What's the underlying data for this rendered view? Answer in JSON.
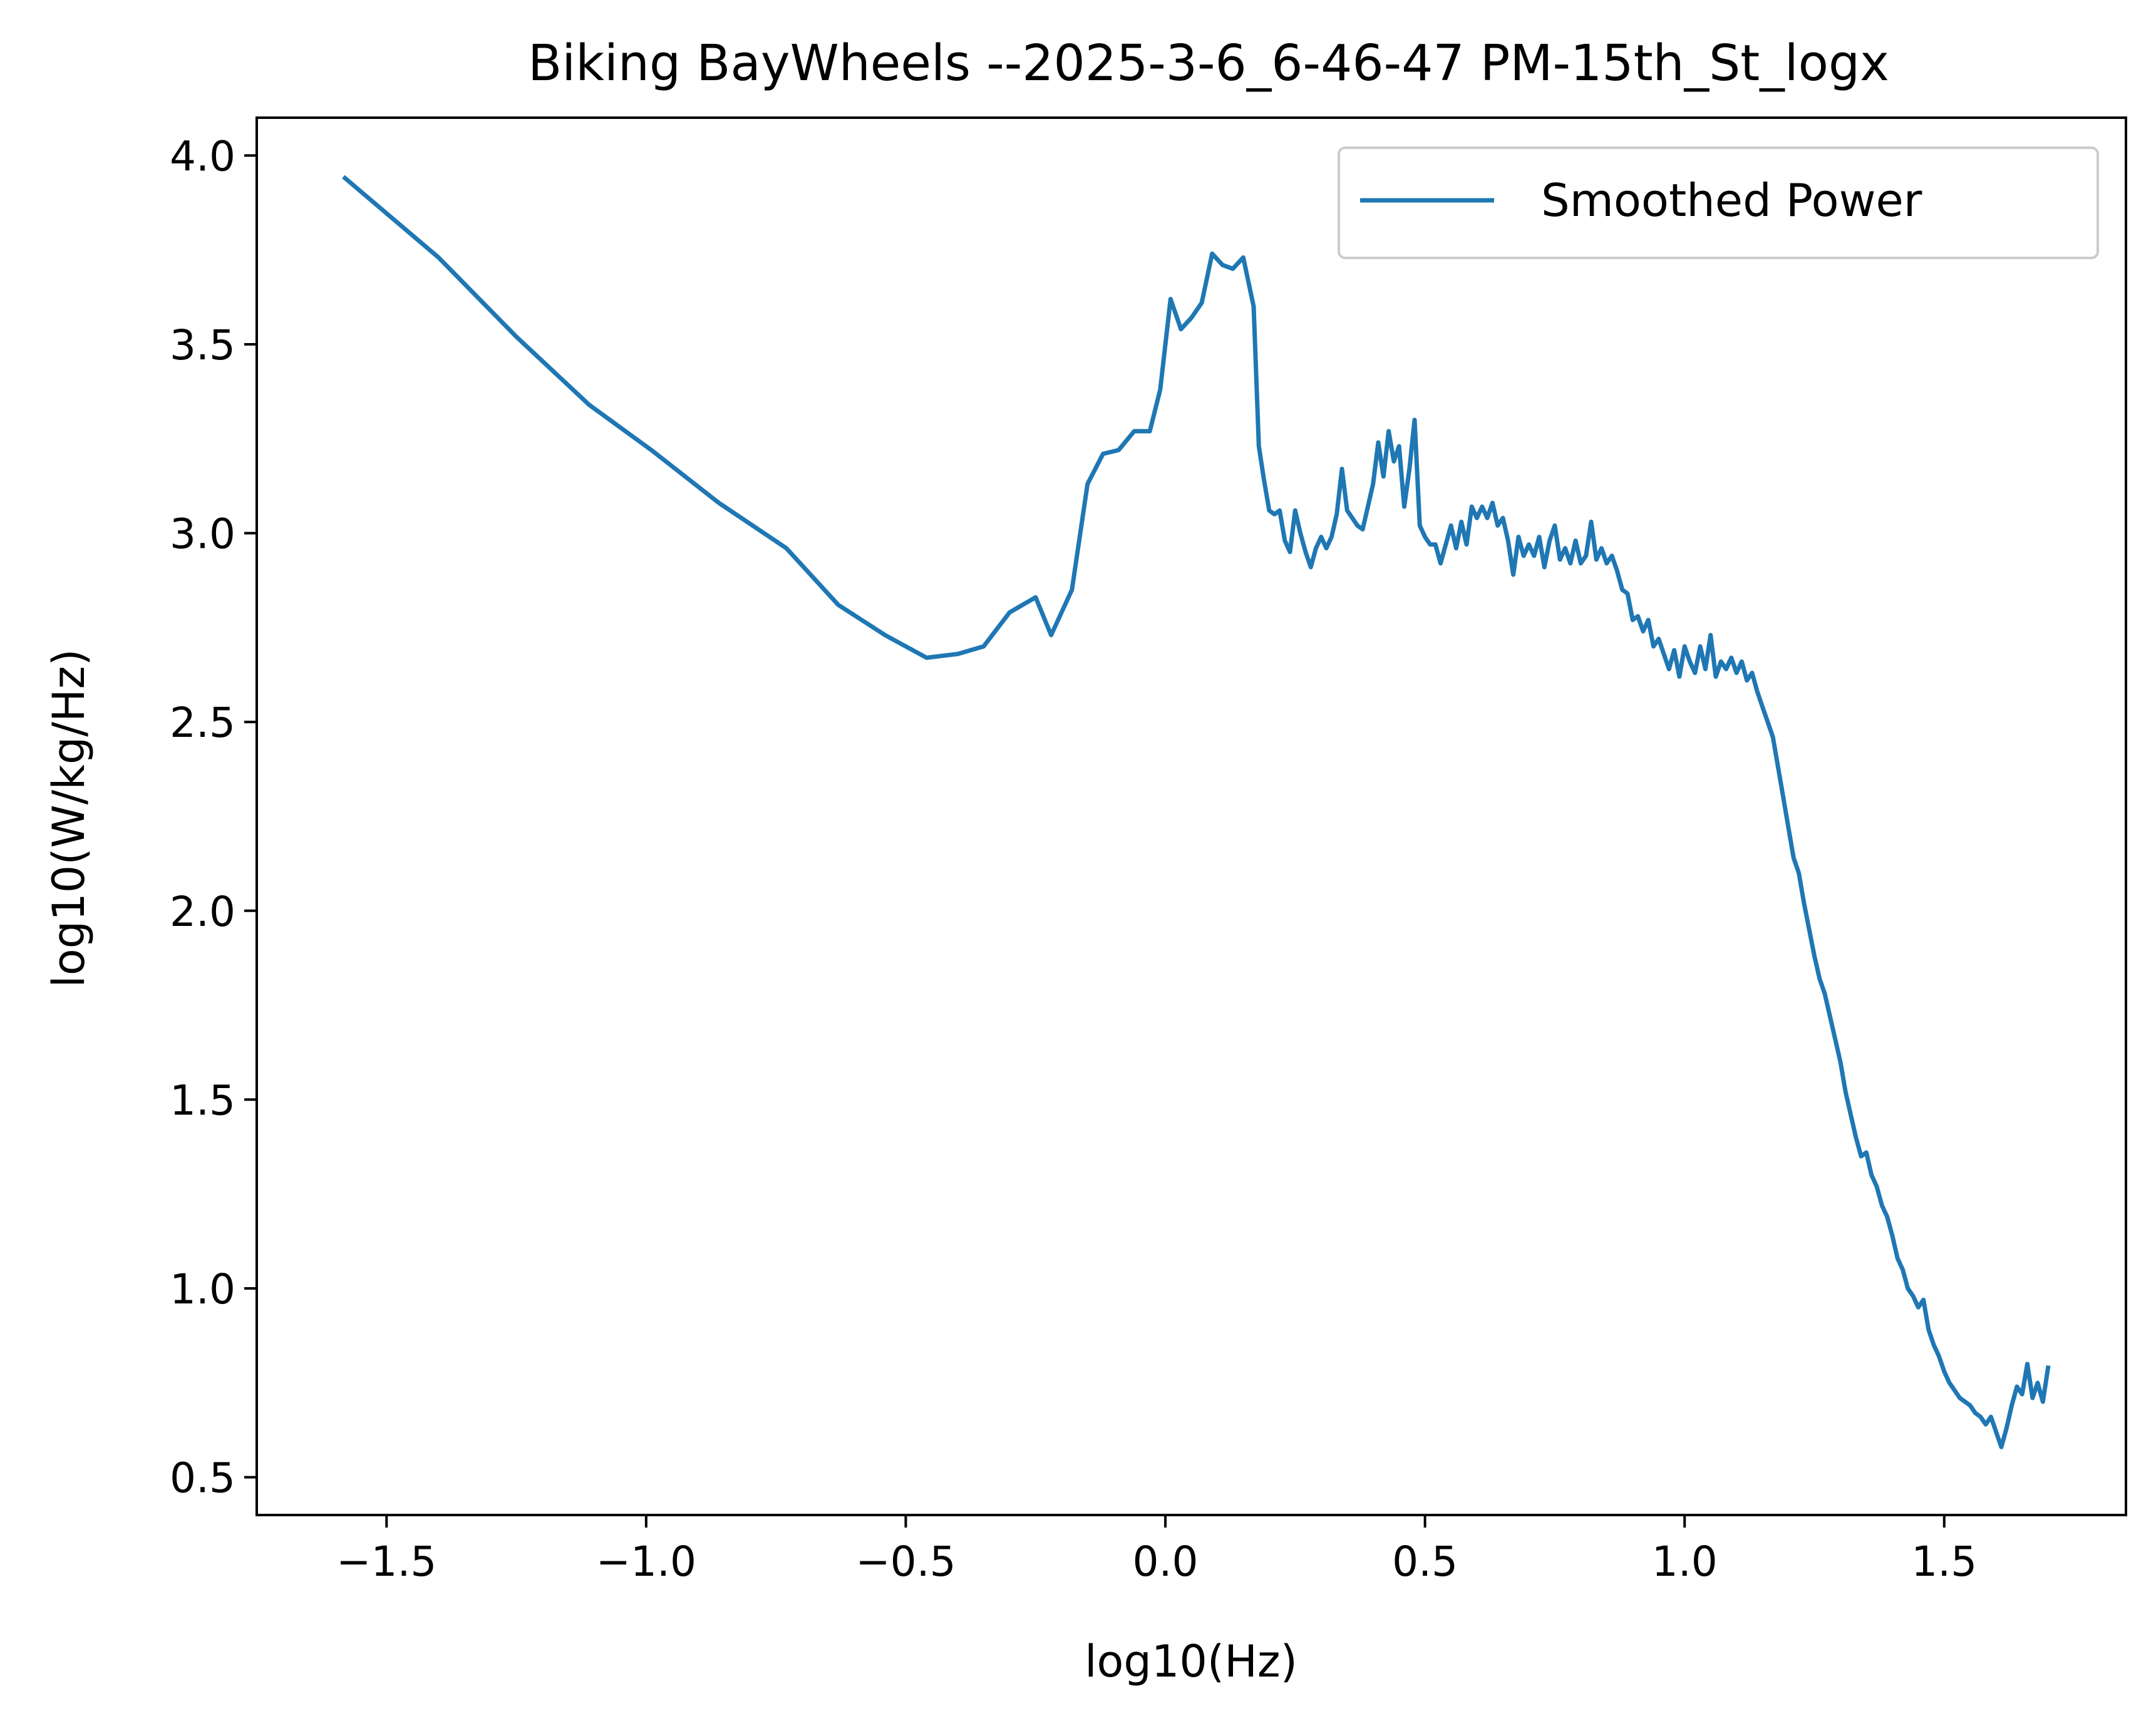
{
  "chart_data": {
    "type": "line",
    "title": "Biking BayWheels --2025-3-6_6-46-47 PM-15th_St_logx",
    "xlabel": "log10(Hz)",
    "ylabel": "log10(W/kg/Hz)",
    "xlim": [
      -1.75,
      1.85
    ],
    "ylim": [
      0.4,
      4.1
    ],
    "xticks": [
      -1.5,
      -1.0,
      -0.5,
      0.0,
      0.5,
      1.0,
      1.5
    ],
    "xtick_labels": [
      "−1.5",
      "−1.0",
      "−0.5",
      "0.0",
      "0.5",
      "1.0",
      "1.5"
    ],
    "yticks": [
      0.5,
      1.0,
      1.5,
      2.0,
      2.5,
      3.0,
      3.5,
      4.0
    ],
    "ytick_labels": [
      "0.5",
      "1.0",
      "1.5",
      "2.0",
      "2.5",
      "3.0",
      "3.5",
      "4.0"
    ],
    "grid": false,
    "legend_position": "top-right",
    "series": [
      {
        "name": "Smoothed Power",
        "color": "#1f77b4",
        "points": [
          [
            -1.58,
            3.94
          ],
          [
            -1.4,
            3.73
          ],
          [
            -1.25,
            3.52
          ],
          [
            -1.11,
            3.34
          ],
          [
            -0.99,
            3.22
          ],
          [
            -0.86,
            3.08
          ],
          [
            -0.73,
            2.96
          ],
          [
            -0.63,
            2.81
          ],
          [
            -0.54,
            2.73
          ],
          [
            -0.46,
            2.67
          ],
          [
            -0.4,
            2.68
          ],
          [
            -0.35,
            2.7
          ],
          [
            -0.3,
            2.79
          ],
          [
            -0.25,
            2.83
          ],
          [
            -0.22,
            2.73
          ],
          [
            -0.18,
            2.85
          ],
          [
            -0.15,
            3.13
          ],
          [
            -0.12,
            3.21
          ],
          [
            -0.09,
            3.22
          ],
          [
            -0.06,
            3.27
          ],
          [
            -0.03,
            3.27
          ],
          [
            -0.01,
            3.38
          ],
          [
            0.01,
            3.62
          ],
          [
            0.03,
            3.54
          ],
          [
            0.05,
            3.57
          ],
          [
            0.07,
            3.61
          ],
          [
            0.09,
            3.74
          ],
          [
            0.11,
            3.71
          ],
          [
            0.13,
            3.7
          ],
          [
            0.15,
            3.73
          ],
          [
            0.17,
            3.6
          ],
          [
            0.18,
            3.23
          ],
          [
            0.19,
            3.14
          ],
          [
            0.2,
            3.06
          ],
          [
            0.21,
            3.05
          ],
          [
            0.22,
            3.06
          ],
          [
            0.23,
            2.98
          ],
          [
            0.24,
            2.95
          ],
          [
            0.25,
            3.06
          ],
          [
            0.26,
            3.0
          ],
          [
            0.27,
            2.95
          ],
          [
            0.28,
            2.91
          ],
          [
            0.29,
            2.96
          ],
          [
            0.3,
            2.99
          ],
          [
            0.31,
            2.96
          ],
          [
            0.32,
            2.99
          ],
          [
            0.33,
            3.05
          ],
          [
            0.34,
            3.17
          ],
          [
            0.35,
            3.06
          ],
          [
            0.37,
            3.02
          ],
          [
            0.38,
            3.01
          ],
          [
            0.39,
            3.07
          ],
          [
            0.4,
            3.13
          ],
          [
            0.41,
            3.24
          ],
          [
            0.42,
            3.15
          ],
          [
            0.43,
            3.27
          ],
          [
            0.44,
            3.19
          ],
          [
            0.45,
            3.23
          ],
          [
            0.46,
            3.07
          ],
          [
            0.47,
            3.17
          ],
          [
            0.48,
            3.3
          ],
          [
            0.49,
            3.02
          ],
          [
            0.5,
            2.99
          ],
          [
            0.51,
            2.97
          ],
          [
            0.52,
            2.97
          ],
          [
            0.53,
            2.92
          ],
          [
            0.54,
            2.97
          ],
          [
            0.55,
            3.02
          ],
          [
            0.56,
            2.96
          ],
          [
            0.57,
            3.03
          ],
          [
            0.58,
            2.97
          ],
          [
            0.59,
            3.07
          ],
          [
            0.6,
            3.04
          ],
          [
            0.61,
            3.07
          ],
          [
            0.62,
            3.04
          ],
          [
            0.63,
            3.08
          ],
          [
            0.64,
            3.02
          ],
          [
            0.65,
            3.04
          ],
          [
            0.66,
            2.98
          ],
          [
            0.67,
            2.89
          ],
          [
            0.68,
            2.99
          ],
          [
            0.69,
            2.94
          ],
          [
            0.7,
            2.97
          ],
          [
            0.71,
            2.94
          ],
          [
            0.72,
            2.99
          ],
          [
            0.73,
            2.91
          ],
          [
            0.74,
            2.98
          ],
          [
            0.75,
            3.02
          ],
          [
            0.76,
            2.93
          ],
          [
            0.77,
            2.96
          ],
          [
            0.78,
            2.92
          ],
          [
            0.79,
            2.98
          ],
          [
            0.8,
            2.92
          ],
          [
            0.81,
            2.94
          ],
          [
            0.82,
            3.03
          ],
          [
            0.83,
            2.93
          ],
          [
            0.84,
            2.96
          ],
          [
            0.85,
            2.92
          ],
          [
            0.86,
            2.94
          ],
          [
            0.87,
            2.9
          ],
          [
            0.88,
            2.85
          ],
          [
            0.89,
            2.84
          ],
          [
            0.9,
            2.77
          ],
          [
            0.91,
            2.78
          ],
          [
            0.92,
            2.74
          ],
          [
            0.93,
            2.77
          ],
          [
            0.94,
            2.7
          ],
          [
            0.95,
            2.72
          ],
          [
            0.96,
            2.68
          ],
          [
            0.97,
            2.64
          ],
          [
            0.98,
            2.69
          ],
          [
            0.99,
            2.62
          ],
          [
            1.0,
            2.7
          ],
          [
            1.01,
            2.66
          ],
          [
            1.02,
            2.63
          ],
          [
            1.03,
            2.7
          ],
          [
            1.04,
            2.64
          ],
          [
            1.05,
            2.73
          ],
          [
            1.06,
            2.62
          ],
          [
            1.07,
            2.66
          ],
          [
            1.08,
            2.64
          ],
          [
            1.09,
            2.67
          ],
          [
            1.1,
            2.63
          ],
          [
            1.11,
            2.66
          ],
          [
            1.12,
            2.61
          ],
          [
            1.13,
            2.63
          ],
          [
            1.14,
            2.58
          ],
          [
            1.15,
            2.54
          ],
          [
            1.16,
            2.5
          ],
          [
            1.17,
            2.46
          ],
          [
            1.18,
            2.38
          ],
          [
            1.19,
            2.3
          ],
          [
            1.2,
            2.22
          ],
          [
            1.21,
            2.14
          ],
          [
            1.22,
            2.1
          ],
          [
            1.23,
            2.02
          ],
          [
            1.24,
            1.95
          ],
          [
            1.25,
            1.88
          ],
          [
            1.26,
            1.82
          ],
          [
            1.27,
            1.78
          ],
          [
            1.28,
            1.72
          ],
          [
            1.29,
            1.66
          ],
          [
            1.3,
            1.6
          ],
          [
            1.31,
            1.52
          ],
          [
            1.32,
            1.46
          ],
          [
            1.33,
            1.4
          ],
          [
            1.34,
            1.35
          ],
          [
            1.35,
            1.36
          ],
          [
            1.36,
            1.3
          ],
          [
            1.37,
            1.27
          ],
          [
            1.38,
            1.22
          ],
          [
            1.39,
            1.19
          ],
          [
            1.4,
            1.14
          ],
          [
            1.41,
            1.08
          ],
          [
            1.42,
            1.05
          ],
          [
            1.43,
            1.0
          ],
          [
            1.44,
            0.98
          ],
          [
            1.45,
            0.95
          ],
          [
            1.46,
            0.97
          ],
          [
            1.47,
            0.89
          ],
          [
            1.48,
            0.85
          ],
          [
            1.49,
            0.82
          ],
          [
            1.5,
            0.78
          ],
          [
            1.51,
            0.75
          ],
          [
            1.52,
            0.73
          ],
          [
            1.53,
            0.71
          ],
          [
            1.54,
            0.7
          ],
          [
            1.55,
            0.69
          ],
          [
            1.56,
            0.67
          ],
          [
            1.57,
            0.66
          ],
          [
            1.58,
            0.64
          ],
          [
            1.59,
            0.66
          ],
          [
            1.6,
            0.62
          ],
          [
            1.61,
            0.58
          ],
          [
            1.62,
            0.63
          ],
          [
            1.63,
            0.69
          ],
          [
            1.64,
            0.74
          ],
          [
            1.65,
            0.72
          ],
          [
            1.66,
            0.8
          ],
          [
            1.67,
            0.71
          ],
          [
            1.68,
            0.75
          ],
          [
            1.69,
            0.7
          ],
          [
            1.7,
            0.79
          ]
        ]
      }
    ]
  }
}
